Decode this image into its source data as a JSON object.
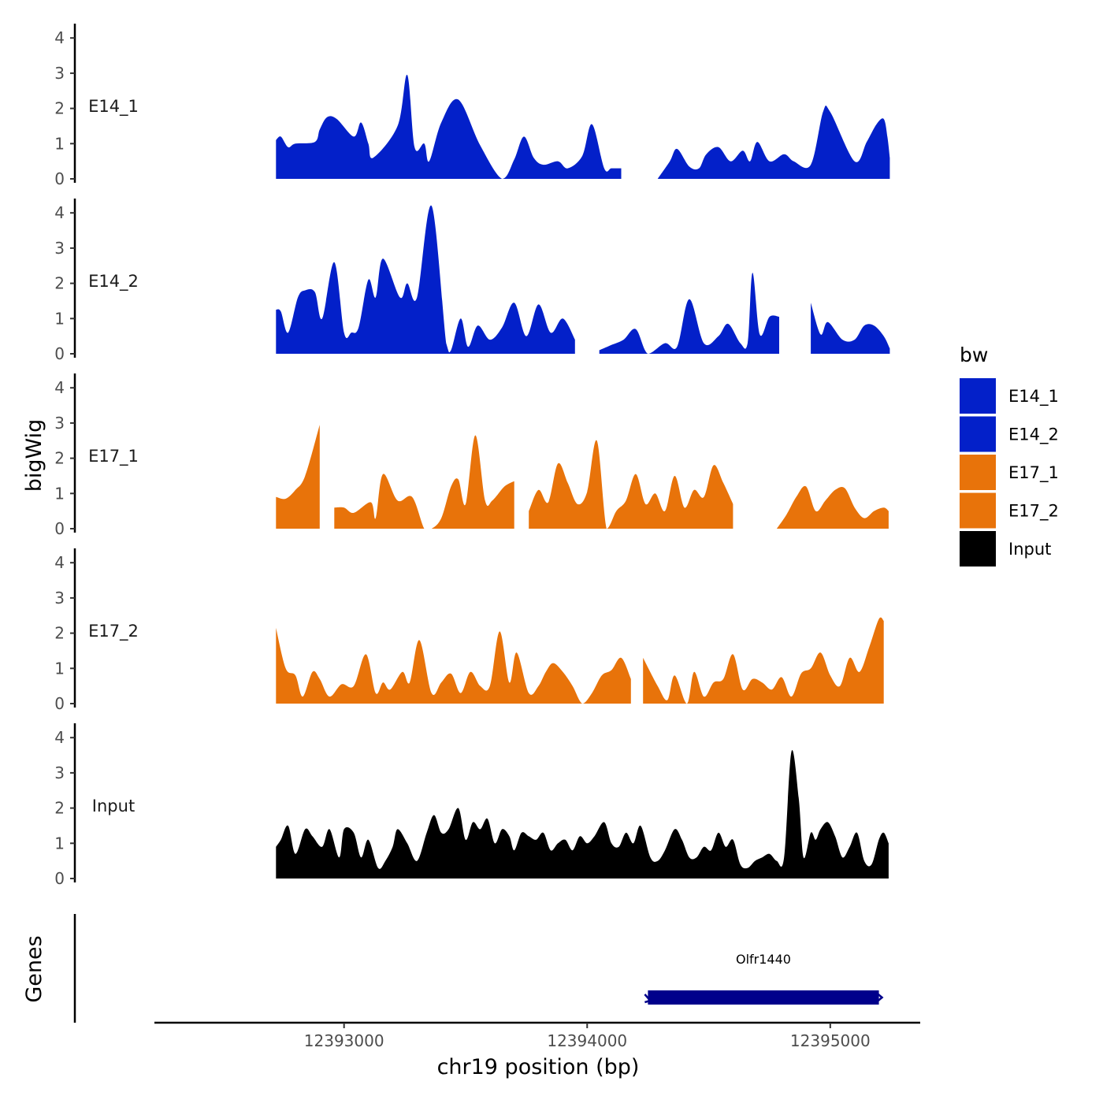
{
  "chart_data": {
    "type": "area",
    "chromosome": "chr19",
    "xlabel": "chr19 position (bp)",
    "ylabel": "bigWig",
    "genes_label": "Genes",
    "xlim": [
      12392220,
      12395370
    ],
    "x_ticks": [
      12393000,
      12394000,
      12395000
    ],
    "x_tick_labels": [
      "12393000",
      "12394000",
      "12395000"
    ],
    "ylim": [
      0,
      4.3
    ],
    "y_ticks": [
      0,
      1,
      2,
      3,
      4
    ],
    "y_tick_labels": [
      "0",
      "1",
      "2",
      "3",
      "4"
    ],
    "legend": {
      "title": "bw",
      "position": "right",
      "entries": [
        {
          "label": "E14_1",
          "color": "#0320C9"
        },
        {
          "label": "E14_2",
          "color": "#0320C9"
        },
        {
          "label": "E17_1",
          "color": "#E8730A"
        },
        {
          "label": "E17_2",
          "color": "#E8730A"
        },
        {
          "label": "Input",
          "color": "#000000"
        }
      ]
    },
    "series": [
      {
        "name": "E14_1",
        "color": "#0320C9",
        "x": [
          12392720,
          12392740,
          12392770,
          12392800,
          12392880,
          12392900,
          12392930,
          12392970,
          12393040,
          12393070,
          12393100,
          12393120,
          12393220,
          12393260,
          12393290,
          12393330,
          12393350,
          12393400,
          12393470,
          12393560,
          12393650,
          12393700,
          12393740,
          12393780,
          12393820,
          12393880,
          12393920,
          12393980,
          12394020,
          12394070,
          12394100,
          12394140,
          12394290,
          12394340,
          12394370,
          12394420,
          12394460,
          12394490,
          12394540,
          12394590,
          12394640,
          12394670,
          12394700,
          12394750,
          12394810,
          12394850,
          12394920,
          12394970,
          12395000,
          12395100,
          12395150,
          12395190,
          12395220,
          12395235,
          12395245
        ],
        "values": [
          1.1,
          1.2,
          0.9,
          1.0,
          1.05,
          1.4,
          1.75,
          1.7,
          1.2,
          1.6,
          1.0,
          0.6,
          1.5,
          2.95,
          0.9,
          1.0,
          0.5,
          1.6,
          2.25,
          0.95,
          0.0,
          0.55,
          1.2,
          0.6,
          0.4,
          0.5,
          0.3,
          0.65,
          1.55,
          0.3,
          0.3,
          0.3,
          0.0,
          0.5,
          0.85,
          0.35,
          0.3,
          0.7,
          0.9,
          0.5,
          0.8,
          0.5,
          1.05,
          0.5,
          0.7,
          0.5,
          0.4,
          1.9,
          1.9,
          0.5,
          1.05,
          1.55,
          1.7,
          1.2,
          0.6
        ],
        "gaps": [
          [
            12394240,
            12394290
          ]
        ]
      },
      {
        "name": "E14_2",
        "color": "#0320C9",
        "x": [
          12392720,
          12392740,
          12392770,
          12392810,
          12392840,
          12392880,
          12392910,
          12392960,
          12393000,
          12393030,
          12393060,
          12393100,
          12393130,
          12393160,
          12393230,
          12393260,
          12393300,
          12393360,
          12393420,
          12393440,
          12393480,
          12393510,
          12393550,
          12393600,
          12393650,
          12393700,
          12393750,
          12393800,
          12393850,
          12393900,
          12393950,
          12394000,
          12394050,
          12394100,
          12394150,
          12394200,
          12394250,
          12394320,
          12394370,
          12394420,
          12394480,
          12394540,
          12394580,
          12394630,
          12394660,
          12394680,
          12394710,
          12394750,
          12394790,
          12394800,
          12394870,
          12394920,
          12394960,
          12394990,
          12395050,
          12395100,
          12395140,
          12395180,
          12395220,
          12395245
        ],
        "values": [
          1.25,
          1.2,
          0.6,
          1.6,
          1.8,
          1.75,
          1.0,
          2.6,
          0.6,
          0.6,
          0.75,
          2.1,
          1.6,
          2.7,
          1.6,
          2.0,
          1.6,
          4.2,
          0.3,
          0.1,
          1.0,
          0.2,
          0.8,
          0.4,
          0.75,
          1.45,
          0.5,
          1.4,
          0.6,
          1.0,
          0.4,
          0.7,
          0.1,
          0.25,
          0.4,
          0.7,
          0.0,
          0.3,
          0.2,
          1.55,
          0.3,
          0.5,
          0.85,
          0.3,
          0.3,
          2.3,
          0.55,
          1.05,
          1.05,
          1.0,
          0.0,
          1.45,
          0.55,
          0.9,
          0.4,
          0.4,
          0.8,
          0.8,
          0.5,
          0.15
        ],
        "gaps": [
          [
            12393990,
            12394030
          ],
          [
            12394790,
            12394890
          ]
        ]
      },
      {
        "name": "E17_1",
        "color": "#E8730A",
        "x": [
          12392720,
          12392760,
          12392800,
          12392840,
          12392900,
          12392960,
          12393000,
          12393040,
          12393110,
          12393130,
          12393160,
          12393220,
          12393280,
          12393330,
          12393360,
          12393400,
          12393440,
          12393470,
          12393500,
          12393540,
          12393580,
          12393610,
          12393660,
          12393700,
          12393760,
          12393800,
          12393840,
          12393880,
          12393920,
          12393960,
          12394000,
          12394040,
          12394080,
          12394120,
          12394160,
          12394200,
          12394240,
          12394280,
          12394320,
          12394360,
          12394400,
          12394440,
          12394480,
          12394520,
          12394560,
          12394600,
          12394640,
          12394660,
          12394700,
          12394740,
          12394780,
          12394820,
          12394860,
          12394900,
          12394940,
          12394980,
          12395020,
          12395060,
          12395100,
          12395140,
          12395180,
          12395220,
          12395240
        ],
        "values": [
          0.9,
          0.85,
          1.1,
          1.5,
          2.95,
          0.6,
          0.6,
          0.45,
          0.75,
          0.3,
          1.55,
          0.8,
          0.9,
          0.0,
          0.0,
          0.3,
          1.2,
          1.4,
          0.7,
          2.65,
          0.8,
          0.8,
          1.2,
          1.35,
          0.5,
          1.1,
          0.75,
          1.85,
          1.3,
          0.7,
          1.05,
          2.5,
          0.0,
          0.5,
          0.8,
          1.55,
          0.7,
          1.0,
          0.5,
          1.5,
          0.6,
          1.1,
          0.9,
          1.8,
          1.3,
          0.7,
          0.2,
          0.3,
          0.0,
          0.0,
          0.0,
          0.4,
          0.9,
          1.2,
          0.5,
          0.8,
          1.1,
          1.15,
          0.6,
          0.3,
          0.5,
          0.6,
          0.5
        ],
        "gaps": [
          [
            12392930,
            12392950
          ],
          [
            12393710,
            12393730
          ],
          [
            12394620,
            12394760
          ]
        ]
      },
      {
        "name": "E17_2",
        "color": "#E8730A",
        "x": [
          12392720,
          12392760,
          12392800,
          12392830,
          12392870,
          12392900,
          12392940,
          12392990,
          12393040,
          12393090,
          12393130,
          12393160,
          12393190,
          12393240,
          12393270,
          12393310,
          12393360,
          12393400,
          12393440,
          12393480,
          12393520,
          12393560,
          12393600,
          12393640,
          12393680,
          12393710,
          12393760,
          12393800,
          12393830,
          12393860,
          12393900,
          12393940,
          12393980,
          12394020,
          12394060,
          12394100,
          12394140,
          12394180,
          12394230,
          12394290,
          12394330,
          12394360,
          12394410,
          12394440,
          12394480,
          12394520,
          12394560,
          12394600,
          12394640,
          12394680,
          12394720,
          12394760,
          12394800,
          12394840,
          12394880,
          12394920,
          12394960,
          12395000,
          12395040,
          12395080,
          12395120,
          12395160,
          12395200,
          12395220
        ],
        "values": [
          2.15,
          1.0,
          0.8,
          0.2,
          0.9,
          0.7,
          0.2,
          0.55,
          0.5,
          1.4,
          0.3,
          0.6,
          0.4,
          0.9,
          0.6,
          1.8,
          0.3,
          0.6,
          0.85,
          0.3,
          0.9,
          0.5,
          0.5,
          2.05,
          0.6,
          1.45,
          0.3,
          0.5,
          0.9,
          1.15,
          0.9,
          0.5,
          0.0,
          0.3,
          0.8,
          0.95,
          1.3,
          0.7,
          1.3,
          0.5,
          0.1,
          0.8,
          0.0,
          0.9,
          0.2,
          0.6,
          0.7,
          1.4,
          0.4,
          0.7,
          0.6,
          0.4,
          0.75,
          0.2,
          0.85,
          1.0,
          1.45,
          0.8,
          0.5,
          1.3,
          0.9,
          1.6,
          2.4,
          2.35
        ],
        "gaps": [
          [
            12394190,
            12394230
          ]
        ]
      },
      {
        "name": "Input",
        "color": "#000000",
        "x": [
          12392720,
          12392740,
          12392770,
          12392800,
          12392840,
          12392870,
          12392910,
          12392940,
          12392980,
          12393000,
          12393040,
          12393070,
          12393100,
          12393140,
          12393170,
          12393200,
          12393220,
          12393260,
          12393300,
          12393340,
          12393370,
          12393400,
          12393430,
          12393470,
          12393500,
          12393530,
          12393560,
          12393590,
          12393620,
          12393650,
          12393680,
          12393700,
          12393730,
          12393760,
          12393790,
          12393820,
          12393850,
          12393880,
          12393910,
          12393940,
          12393970,
          12394000,
          12394030,
          12394070,
          12394100,
          12394130,
          12394160,
          12394190,
          12394220,
          12394260,
          12394290,
          12394320,
          12394360,
          12394390,
          12394420,
          12394450,
          12394480,
          12394510,
          12394540,
          12394570,
          12394600,
          12394630,
          12394660,
          12394690,
          12394720,
          12394750,
          12394780,
          12394810,
          12394840,
          12394870,
          12394890,
          12394920,
          12394940,
          12394960,
          12394990,
          12395020,
          12395050,
          12395080,
          12395110,
          12395140,
          12395170,
          12395200,
          12395220,
          12395240
        ],
        "values": [
          0.9,
          1.1,
          1.5,
          0.7,
          1.4,
          1.2,
          0.9,
          1.4,
          0.6,
          1.4,
          1.3,
          0.6,
          1.1,
          0.3,
          0.5,
          0.9,
          1.4,
          1.0,
          0.5,
          1.3,
          1.8,
          1.3,
          1.4,
          2.0,
          1.1,
          1.6,
          1.4,
          1.7,
          1.0,
          1.4,
          1.2,
          0.8,
          1.3,
          1.2,
          1.1,
          1.3,
          0.8,
          1.0,
          1.1,
          0.8,
          1.2,
          1.0,
          1.2,
          1.6,
          1.0,
          0.9,
          1.3,
          1.0,
          1.5,
          0.6,
          0.5,
          0.8,
          1.4,
          1.1,
          0.6,
          0.6,
          0.9,
          0.8,
          1.3,
          0.9,
          1.1,
          0.4,
          0.3,
          0.5,
          0.6,
          0.7,
          0.5,
          0.6,
          3.6,
          2.3,
          0.6,
          1.3,
          1.1,
          1.4,
          1.6,
          1.2,
          0.6,
          0.9,
          1.3,
          0.5,
          0.4,
          1.1,
          1.3,
          1.0
        ]
      }
    ],
    "genes": [
      {
        "name": "Olfr1440",
        "start": 12394250,
        "end": 12395200,
        "strand": "-",
        "color": "#00008B"
      }
    ]
  }
}
